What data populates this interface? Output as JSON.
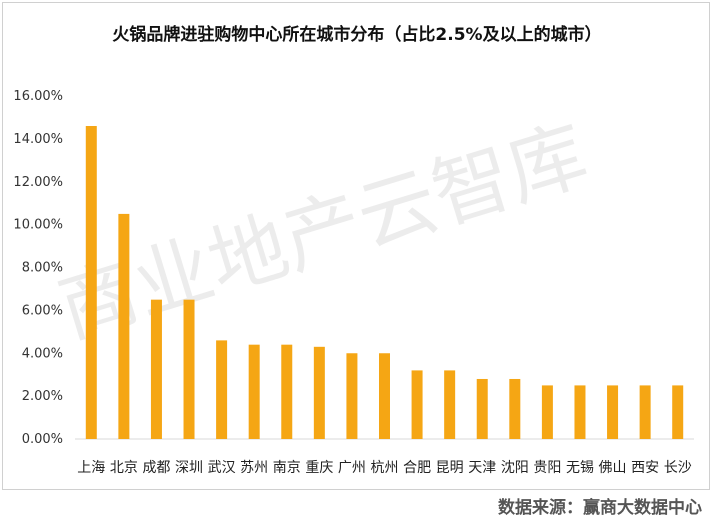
{
  "chart_data": {
    "type": "bar",
    "title": "火锅品牌进驻购物中心所在城市分布（占比2.5%及以上的城市）",
    "categories": [
      "上海",
      "北京",
      "成都",
      "深圳",
      "武汉",
      "苏州",
      "南京",
      "重庆",
      "广州",
      "杭州",
      "合肥",
      "昆明",
      "天津",
      "沈阳",
      "贵阳",
      "无锡",
      "佛山",
      "西安",
      "长沙"
    ],
    "values": [
      14.6,
      10.5,
      6.5,
      6.5,
      4.6,
      4.4,
      4.4,
      4.3,
      4.0,
      4.0,
      3.2,
      3.2,
      2.8,
      2.8,
      2.5,
      2.5,
      2.5,
      2.5,
      2.5
    ],
    "unit": "%",
    "ylim": [
      0,
      16
    ],
    "yticks": [
      "0.00%",
      "2.00%",
      "4.00%",
      "6.00%",
      "8.00%",
      "10.00%",
      "12.00%",
      "14.00%",
      "16.00%"
    ],
    "bar_color": "#F5A614",
    "grid": false,
    "legend": "none"
  },
  "watermark": "商业地产云智库",
  "source": "数据来源：赢商大数据中心"
}
